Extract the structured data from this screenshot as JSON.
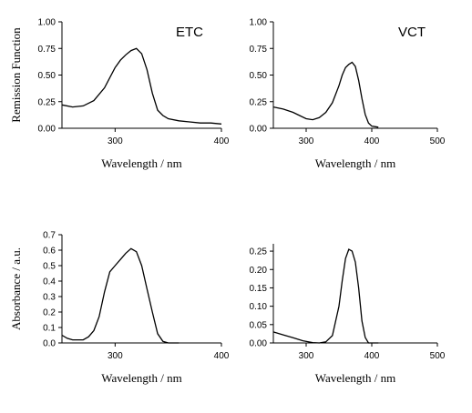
{
  "chart_data": [
    {
      "type": "line",
      "panel_label": "ETC",
      "xlabel": "Wavelength / nm",
      "ylabel": "Remission Function",
      "xlim": [
        250,
        400
      ],
      "ylim": [
        0,
        1.0
      ],
      "xticks": [
        300,
        400
      ],
      "yticks": [
        "0.00",
        "0.25",
        "0.50",
        "0.75",
        "1.00"
      ],
      "series": [
        {
          "x": [
            250,
            260,
            270,
            280,
            290,
            300,
            305,
            310,
            315,
            320,
            325,
            330,
            335,
            340,
            345,
            350,
            360,
            370,
            380,
            390,
            400
          ],
          "y": [
            0.22,
            0.2,
            0.21,
            0.26,
            0.38,
            0.57,
            0.64,
            0.69,
            0.73,
            0.75,
            0.7,
            0.55,
            0.33,
            0.17,
            0.12,
            0.09,
            0.07,
            0.06,
            0.05,
            0.05,
            0.04
          ]
        }
      ]
    },
    {
      "type": "line",
      "panel_label": "VCT",
      "xlabel": "Wavelength / nm",
      "ylabel": "",
      "xlim": [
        250,
        500
      ],
      "ylim": [
        0,
        1.0
      ],
      "xticks": [
        300,
        400,
        500
      ],
      "yticks": [
        "0.00",
        "0.25",
        "0.50",
        "0.75",
        "1.00"
      ],
      "series": [
        {
          "x": [
            250,
            265,
            280,
            290,
            300,
            310,
            320,
            330,
            340,
            350,
            355,
            360,
            365,
            370,
            375,
            380,
            385,
            390,
            395,
            400,
            410
          ],
          "y": [
            0.2,
            0.18,
            0.15,
            0.12,
            0.09,
            0.08,
            0.1,
            0.15,
            0.24,
            0.4,
            0.5,
            0.57,
            0.6,
            0.62,
            0.58,
            0.45,
            0.28,
            0.13,
            0.05,
            0.02,
            0.01
          ]
        }
      ]
    },
    {
      "type": "line",
      "panel_label": "",
      "xlabel": "Wavelength / nm",
      "ylabel": "Absorbance / a.u.",
      "xlim": [
        250,
        400
      ],
      "ylim": [
        0,
        0.7
      ],
      "xticks": [
        300,
        400
      ],
      "yticks": [
        "0.0",
        "0.1",
        "0.2",
        "0.3",
        "0.4",
        "0.5",
        "0.6",
        "0.7"
      ],
      "series": [
        {
          "x": [
            250,
            255,
            260,
            265,
            270,
            275,
            280,
            285,
            290,
            295,
            300,
            305,
            310,
            315,
            320,
            325,
            330,
            335,
            340,
            345,
            350,
            355,
            360
          ],
          "y": [
            0.05,
            0.03,
            0.02,
            0.02,
            0.02,
            0.04,
            0.08,
            0.17,
            0.33,
            0.46,
            0.5,
            0.54,
            0.58,
            0.61,
            0.59,
            0.5,
            0.35,
            0.2,
            0.06,
            0.01,
            0.0,
            0.0,
            0.0
          ]
        }
      ]
    },
    {
      "type": "line",
      "panel_label": "",
      "xlabel": "Wavelength / nm",
      "ylabel": "",
      "xlim": [
        250,
        500
      ],
      "ylim": [
        0,
        0.27
      ],
      "xticks": [
        300,
        400,
        500
      ],
      "yticks": [
        "0.00",
        "0.05",
        "0.10",
        "0.15",
        "0.20",
        "0.25"
      ],
      "series": [
        {
          "x": [
            250,
            265,
            280,
            295,
            310,
            320,
            330,
            340,
            350,
            355,
            360,
            365,
            370,
            375,
            380,
            385,
            390,
            395,
            400,
            410
          ],
          "y": [
            0.03,
            0.022,
            0.014,
            0.006,
            0.001,
            0.0,
            0.003,
            0.02,
            0.1,
            0.17,
            0.23,
            0.255,
            0.25,
            0.22,
            0.15,
            0.06,
            0.015,
            0.0,
            0.0,
            0.0
          ]
        }
      ]
    }
  ]
}
